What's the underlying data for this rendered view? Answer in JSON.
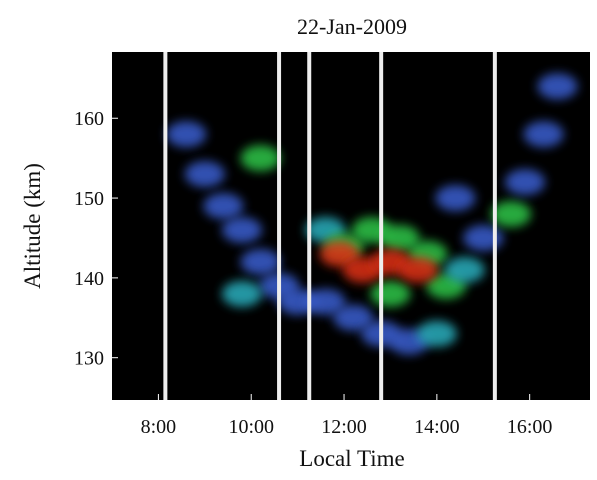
{
  "chart_data": {
    "type": "heatmap",
    "title": "22-Jan-2009",
    "x_label": "Local Time",
    "y_label": "Altitude (km)",
    "xlim": [
      7.0,
      17.3
    ],
    "ylim": [
      124.7,
      168.3
    ],
    "xticks": [
      {
        "value": 8,
        "label": "8:00"
      },
      {
        "value": 10,
        "label": "10:00"
      },
      {
        "value": 12,
        "label": "12:00"
      },
      {
        "value": 14,
        "label": "14:00"
      },
      {
        "value": 16,
        "label": "16:00"
      }
    ],
    "yticks": [
      130,
      140,
      150,
      160
    ],
    "gaps": [
      8.15,
      10.6,
      11.25,
      12.8,
      15.25
    ],
    "level_colors": [
      "#3a5fd0",
      "#2bb0c0",
      "#2ec84a",
      "#e03018"
    ],
    "echoes": [
      {
        "x": 8.6,
        "y": 158,
        "level": 1
      },
      {
        "x": 9.0,
        "y": 153,
        "level": 1
      },
      {
        "x": 9.4,
        "y": 149,
        "level": 1
      },
      {
        "x": 9.8,
        "y": 146,
        "level": 1
      },
      {
        "x": 10.2,
        "y": 142,
        "level": 1
      },
      {
        "x": 10.6,
        "y": 139,
        "level": 1
      },
      {
        "x": 11.0,
        "y": 137,
        "level": 1
      },
      {
        "x": 9.8,
        "y": 138,
        "level": 2
      },
      {
        "x": 10.2,
        "y": 155,
        "level": 3
      },
      {
        "x": 11.6,
        "y": 137,
        "level": 1
      },
      {
        "x": 12.2,
        "y": 135,
        "level": 1
      },
      {
        "x": 12.8,
        "y": 133,
        "level": 1
      },
      {
        "x": 13.4,
        "y": 132,
        "level": 1
      },
      {
        "x": 14.0,
        "y": 133,
        "level": 2
      },
      {
        "x": 11.6,
        "y": 146,
        "level": 2
      },
      {
        "x": 12.0,
        "y": 144,
        "level": 3
      },
      {
        "x": 12.6,
        "y": 146,
        "level": 3
      },
      {
        "x": 13.2,
        "y": 145,
        "level": 3
      },
      {
        "x": 13.8,
        "y": 143,
        "level": 3
      },
      {
        "x": 13.0,
        "y": 138,
        "level": 3
      },
      {
        "x": 14.2,
        "y": 139,
        "level": 3
      },
      {
        "x": 11.9,
        "y": 143,
        "level": 4
      },
      {
        "x": 12.4,
        "y": 141,
        "level": 4
      },
      {
        "x": 13.0,
        "y": 142,
        "level": 4
      },
      {
        "x": 13.6,
        "y": 141,
        "level": 4
      },
      {
        "x": 14.6,
        "y": 141,
        "level": 2
      },
      {
        "x": 15.0,
        "y": 145,
        "level": 1
      },
      {
        "x": 15.6,
        "y": 148,
        "level": 3
      },
      {
        "x": 15.9,
        "y": 152,
        "level": 1
      },
      {
        "x": 16.3,
        "y": 158,
        "level": 1
      },
      {
        "x": 16.6,
        "y": 164,
        "level": 1
      },
      {
        "x": 14.4,
        "y": 150,
        "level": 1
      }
    ]
  }
}
